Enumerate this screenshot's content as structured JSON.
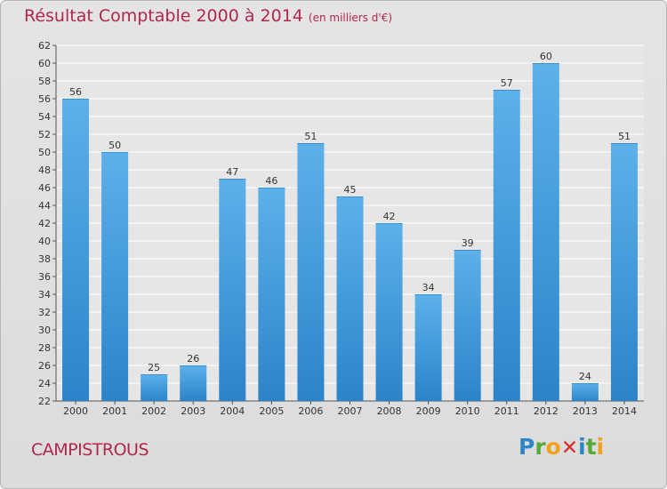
{
  "header": {
    "title": "Résultat Comptable 2000 à 2014",
    "unit": "(en milliers d'€)"
  },
  "footer": {
    "commune": "CAMPISTROUS",
    "logo_text": "Proxiti"
  },
  "colors": {
    "bar_top": "#5cb1ea",
    "bar_bottom": "#2d83c9",
    "title": "#b3264d"
  },
  "chart_data": {
    "type": "bar",
    "title": "Résultat Comptable 2000 à 2014",
    "xlabel": "",
    "ylabel": "",
    "categories": [
      "2000",
      "2001",
      "2002",
      "2003",
      "2004",
      "2005",
      "2006",
      "2007",
      "2008",
      "2009",
      "2010",
      "2011",
      "2012",
      "2013",
      "2014"
    ],
    "values": [
      56,
      50,
      25,
      26,
      47,
      46,
      51,
      45,
      42,
      34,
      39,
      57,
      60,
      24,
      51
    ],
    "ylim": [
      22,
      62
    ],
    "yticks": [
      22,
      24,
      26,
      28,
      30,
      32,
      34,
      36,
      38,
      40,
      42,
      44,
      46,
      48,
      50,
      52,
      54,
      56,
      58,
      60,
      62
    ],
    "grid": true,
    "data_labels": true
  }
}
